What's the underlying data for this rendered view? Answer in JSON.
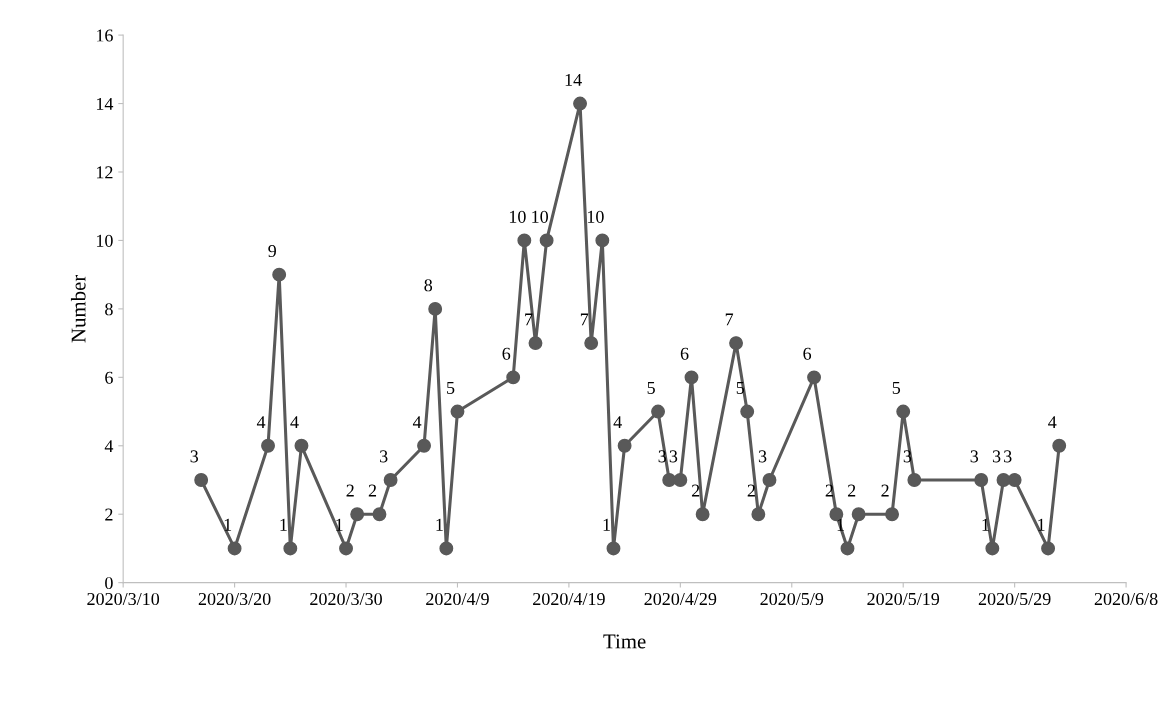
{
  "chart_data": {
    "type": "line",
    "xlabel": "Time",
    "ylabel": "Number",
    "x": [
      "2020-03-17",
      "2020-03-20",
      "2020-03-23",
      "2020-03-24",
      "2020-03-25",
      "2020-03-26",
      "2020-03-30",
      "2020-03-31",
      "2020-04-02",
      "2020-04-03",
      "2020-04-06",
      "2020-04-07",
      "2020-04-08",
      "2020-04-09",
      "2020-04-14",
      "2020-04-15",
      "2020-04-16",
      "2020-04-17",
      "2020-04-20",
      "2020-04-21",
      "2020-04-22",
      "2020-04-23",
      "2020-04-24",
      "2020-04-27",
      "2020-04-28",
      "2020-04-29",
      "2020-04-30",
      "2020-05-01",
      "2020-05-04",
      "2020-05-05",
      "2020-05-06",
      "2020-05-07",
      "2020-05-11",
      "2020-05-13",
      "2020-05-14",
      "2020-05-15",
      "2020-05-18",
      "2020-05-19",
      "2020-05-20",
      "2020-05-26",
      "2020-05-27",
      "2020-05-28",
      "2020-05-29",
      "2020-06-01",
      "2020-06-02"
    ],
    "series": [
      {
        "color": "#595959",
        "values": [
          3,
          1,
          4,
          9,
          1,
          4,
          1,
          2,
          2,
          3,
          4,
          8,
          1,
          5,
          6,
          10,
          7,
          10,
          14,
          7,
          10,
          1,
          4,
          5,
          3,
          3,
          6,
          2,
          7,
          5,
          2,
          3,
          6,
          2,
          1,
          2,
          2,
          5,
          3,
          3,
          1,
          3,
          3,
          1,
          4
        ]
      }
    ],
    "xlim": [
      "2020-03-10",
      "2020-06-08"
    ],
    "xticks": [
      {
        "value": "2020-03-10",
        "label": "2020/3/10"
      },
      {
        "value": "2020-03-20",
        "label": "2020/3/20"
      },
      {
        "value": "2020-03-30",
        "label": "2020/3/30"
      },
      {
        "value": "2020-04-09",
        "label": "2020/4/9"
      },
      {
        "value": "2020-04-19",
        "label": "2020/4/19"
      },
      {
        "value": "2020-04-29",
        "label": "2020/4/29"
      },
      {
        "value": "2020-05-09",
        "label": "2020/5/9"
      },
      {
        "value": "2020-05-19",
        "label": "2020/5/19"
      },
      {
        "value": "2020-05-29",
        "label": "2020/5/29"
      },
      {
        "value": "2020-06-08",
        "label": "2020/6/8"
      }
    ],
    "ylim": [
      0,
      16
    ],
    "yticks": [
      0,
      2,
      4,
      6,
      8,
      10,
      12,
      14,
      16
    ],
    "grid": false,
    "marker": "circle",
    "line_style": "solid",
    "data_labels": true
  }
}
